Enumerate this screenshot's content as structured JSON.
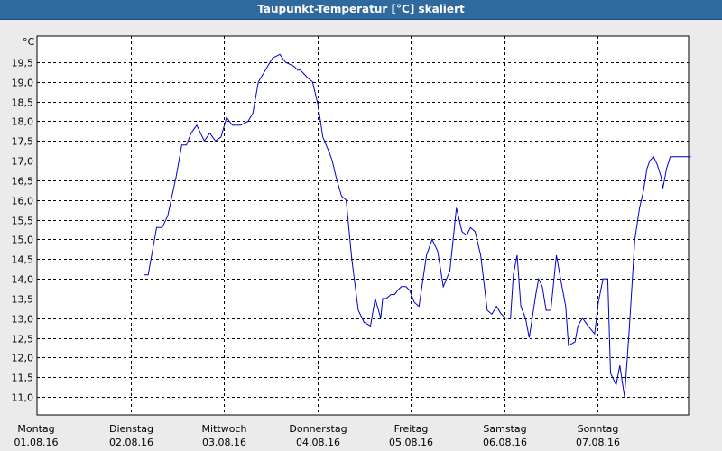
{
  "window": {
    "title": "Taupunkt-Temperatur [°C] skaliert"
  },
  "chart_data": {
    "type": "line",
    "title": "Taupunkt-Temperatur [°C] skaliert",
    "ylabel": "°C",
    "xlabel": "",
    "ylim": [
      10.7,
      20.0
    ],
    "xlim": [
      0,
      7
    ],
    "grid": true,
    "x_unit": "days from 01.08.16 00:00",
    "yticks": [
      "11,0",
      "11,5",
      "12,0",
      "12,5",
      "13,0",
      "13,5",
      "14,0",
      "14,5",
      "15,0",
      "15,5",
      "16,0",
      "16,5",
      "17,0",
      "17,5",
      "18,0",
      "18,5",
      "19,0",
      "19,5"
    ],
    "ytick_values": [
      11.0,
      11.5,
      12.0,
      12.5,
      13.0,
      13.5,
      14.0,
      14.5,
      15.0,
      15.5,
      16.0,
      16.5,
      17.0,
      17.5,
      18.0,
      18.5,
      19.0,
      19.5
    ],
    "xticks": [
      {
        "day": "Montag",
        "date": "01.08.16"
      },
      {
        "day": "Dienstag",
        "date": "02.08.16"
      },
      {
        "day": "Mittwoch",
        "date": "03.08.16"
      },
      {
        "day": "Donnerstag",
        "date": "04.08.16"
      },
      {
        "day": "Freitag",
        "date": "05.08.16"
      },
      {
        "day": "Samstag",
        "date": "06.08.16"
      },
      {
        "day": "Sonntag",
        "date": "07.08.16"
      }
    ],
    "series": [
      {
        "color": "#0000cc",
        "x": [
          1.15,
          1.19,
          1.28,
          1.34,
          1.4,
          1.49,
          1.55,
          1.6,
          1.65,
          1.71,
          1.79,
          1.85,
          1.91,
          1.97,
          2.03,
          2.09,
          2.18,
          2.26,
          2.31,
          2.37,
          2.42,
          2.52,
          2.6,
          2.66,
          2.75,
          2.79,
          2.82,
          2.86,
          2.9,
          2.95,
          3.01,
          3.06,
          3.13,
          3.16,
          3.2,
          3.26,
          3.31,
          3.37,
          3.44,
          3.5,
          3.57,
          3.62,
          3.68,
          3.7,
          3.74,
          3.79,
          3.83,
          3.86,
          3.9,
          3.95,
          3.99,
          4.04,
          4.09,
          4.17,
          4.23,
          4.29,
          4.35,
          4.42,
          4.49,
          4.55,
          4.6,
          4.64,
          4.69,
          4.75,
          4.82,
          4.87,
          4.92,
          4.97,
          5.02,
          5.07,
          5.1,
          5.14,
          5.18,
          5.23,
          5.27,
          5.34,
          5.37,
          5.41,
          5.45,
          5.5,
          5.56,
          5.62,
          5.66,
          5.69,
          5.76,
          5.79,
          5.84,
          5.9,
          5.97,
          6.01,
          6.06,
          6.11,
          6.14,
          6.2,
          6.24,
          6.29,
          6.34,
          6.4,
          6.45,
          6.49,
          6.53,
          6.56,
          6.6,
          6.64,
          6.68,
          6.7,
          6.74,
          6.78,
          6.82,
          6.87,
          6.91,
          6.96,
          7.0
        ],
        "y": [
          14.1,
          14.1,
          15.3,
          15.3,
          15.6,
          16.6,
          17.4,
          17.4,
          17.7,
          17.9,
          17.5,
          17.7,
          17.5,
          17.6,
          18.1,
          17.9,
          17.9,
          18.0,
          18.2,
          19.0,
          19.2,
          19.6,
          19.7,
          19.5,
          19.4,
          19.3,
          19.3,
          19.2,
          19.1,
          19.0,
          18.4,
          17.6,
          17.2,
          17.0,
          16.6,
          16.1,
          16.0,
          14.5,
          13.2,
          12.9,
          12.8,
          13.5,
          13.0,
          13.5,
          13.5,
          13.6,
          13.6,
          13.7,
          13.8,
          13.8,
          13.7,
          13.4,
          13.3,
          14.6,
          15.0,
          14.7,
          13.8,
          14.2,
          15.8,
          15.2,
          15.1,
          15.3,
          15.2,
          14.6,
          13.2,
          13.1,
          13.3,
          13.1,
          13.0,
          13.0,
          14.1,
          14.6,
          13.3,
          13.0,
          12.5,
          13.6,
          14.0,
          13.8,
          13.2,
          13.2,
          14.6,
          13.8,
          13.3,
          12.3,
          12.4,
          12.8,
          13.0,
          12.8,
          12.6,
          13.4,
          14.0,
          14.0,
          11.6,
          11.3,
          11.8,
          11.0,
          12.7,
          15.0,
          15.8,
          16.2,
          16.8,
          17.0,
          17.1,
          16.9,
          16.6,
          16.3,
          16.8,
          17.1,
          17.1,
          17.1,
          17.1,
          17.1,
          17.1
        ]
      }
    ]
  }
}
